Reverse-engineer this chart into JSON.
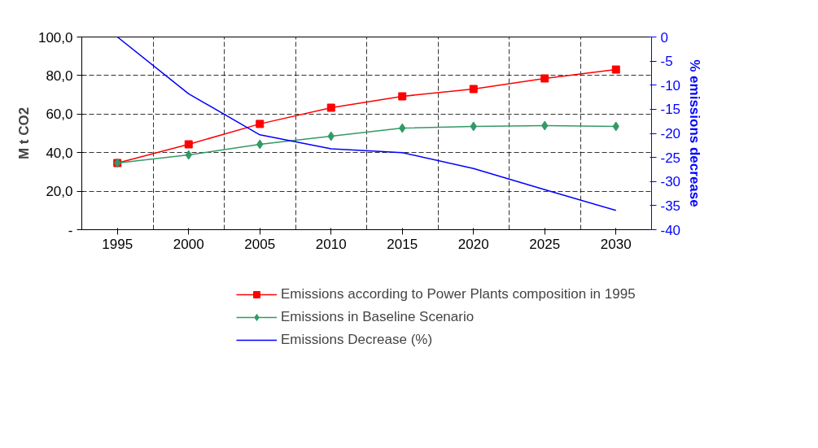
{
  "chart_data": {
    "type": "line",
    "categories": [
      "1995",
      "2000",
      "2005",
      "2010",
      "2015",
      "2020",
      "2025",
      "2030"
    ],
    "ylabel": "M t CO2",
    "y2label": "% emissions decrease",
    "ylim": [
      0,
      100
    ],
    "yticks": [
      {
        "value": 0,
        "label": "-"
      },
      {
        "value": 20,
        "label": "20,0"
      },
      {
        "value": 40,
        "label": "40,0"
      },
      {
        "value": 60,
        "label": "60,0"
      },
      {
        "value": 80,
        "label": "80,0"
      },
      {
        "value": 100,
        "label": "100,0"
      }
    ],
    "y2lim": [
      -40,
      0
    ],
    "y2ticks": [
      -40,
      -35,
      -30,
      -25,
      -20,
      -15,
      -10,
      -5,
      0
    ],
    "grid": true,
    "legend": "bottom",
    "series": [
      {
        "name": "Emissions according to Power Plants composition in 1995",
        "color": "#ff0000",
        "marker": "square",
        "values": [
          34.6,
          44.3,
          54.9,
          63.3,
          69.2,
          73.0,
          78.5,
          83.1
        ]
      },
      {
        "name": "Emissions in Baseline Scenario",
        "color": "#339966",
        "marker": "diamond",
        "values": [
          34.6,
          38.8,
          44.3,
          48.5,
          52.7,
          53.6,
          54.0,
          53.6
        ]
      },
      {
        "name": "Emissions Decrease (%)",
        "color": "#0000ff",
        "marker": "none",
        "axis": "y2",
        "values": [
          0,
          -11.8,
          -20.3,
          -23.2,
          -24.0,
          -27.3,
          -31.7,
          -36.0
        ]
      }
    ]
  }
}
